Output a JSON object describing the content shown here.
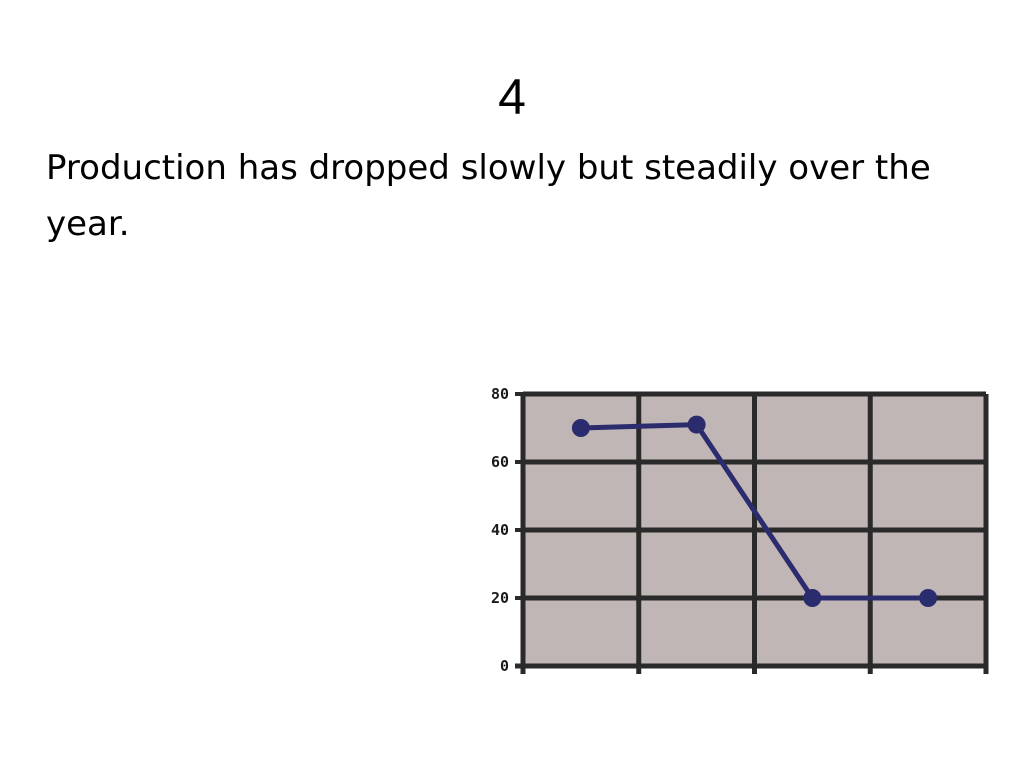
{
  "slide": {
    "title": "4",
    "body": "Production has dropped slowly but steadily over the year."
  },
  "chart_data": {
    "type": "line",
    "title": "",
    "xlabel": "",
    "ylabel": "",
    "x": [
      1,
      2,
      3,
      4
    ],
    "values": [
      70,
      71,
      20,
      20
    ],
    "ylim": [
      0,
      80
    ],
    "yticks": [
      "0",
      "20",
      "40",
      "60",
      "80"
    ],
    "grid": true,
    "colors": {
      "plot_background": "#c0b6b6",
      "grid": "#2a2a2a",
      "line": "#2b2c6e",
      "marker": "#2b2c6e"
    }
  }
}
